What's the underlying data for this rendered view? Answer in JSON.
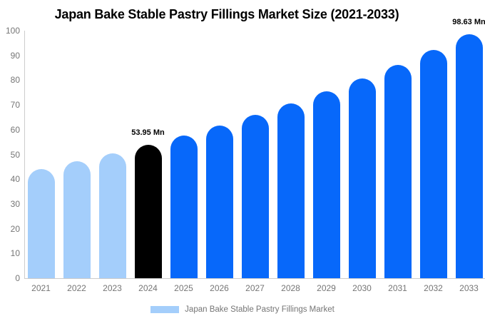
{
  "title": "Japan Bake Stable Pastry Fillings Market Size (2021-2033)",
  "legend": {
    "label": "Japan Bake Stable Pastry Fillings Market",
    "swatch_color": "#a4cefb"
  },
  "colors": {
    "historical_bar": "#a4cefb",
    "base_year_bar": "#000000",
    "forecast_bar": "#0768fa",
    "axis_line": "#cccccc",
    "axis_text": "#757575",
    "title_text": "#000000",
    "annotation_text": "#000000",
    "background": "#ffffff"
  },
  "chart_data": {
    "type": "bar",
    "title": "Japan Bake Stable Pastry Fillings Market Size (2021-2033)",
    "unit": "Mn",
    "categories": [
      "2021",
      "2022",
      "2023",
      "2024",
      "2025",
      "2026",
      "2027",
      "2028",
      "2029",
      "2030",
      "2031",
      "2032",
      "2033"
    ],
    "series": [
      {
        "name": "Japan Bake Stable Pastry Fillings Market",
        "values": [
          44.1,
          47.2,
          50.4,
          53.95,
          57.7,
          61.7,
          66.0,
          70.5,
          75.4,
          80.7,
          86.2,
          92.2,
          98.63
        ]
      }
    ],
    "bar_colors": [
      "#a4cefb",
      "#a4cefb",
      "#a4cefb",
      "#000000",
      "#0768fa",
      "#0768fa",
      "#0768fa",
      "#0768fa",
      "#0768fa",
      "#0768fa",
      "#0768fa",
      "#0768fa",
      "#0768fa"
    ],
    "point_labels": [
      "",
      "",
      "",
      "53.95 Mn",
      "",
      "",
      "",
      "",
      "",
      "",
      "",
      "",
      "98.63 Mn"
    ],
    "xlabel": "",
    "ylabel": "",
    "ylim": [
      0,
      100
    ],
    "ytick_step": 10,
    "grid": false,
    "legend_position": "bottom"
  }
}
